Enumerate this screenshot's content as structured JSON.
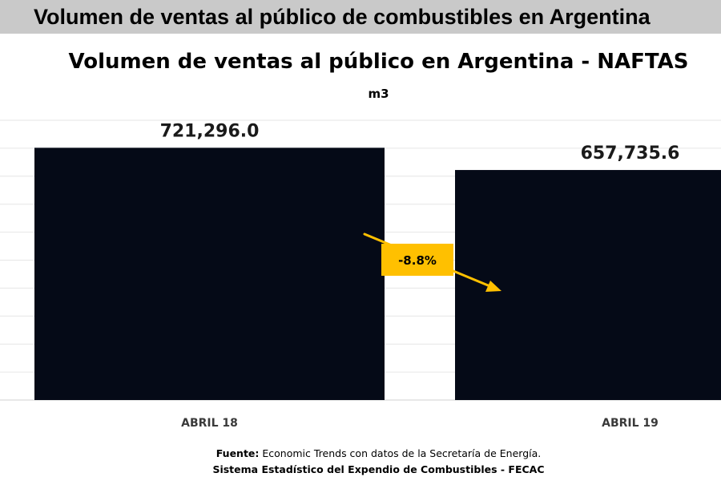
{
  "banner": {
    "title": "Volumen de ventas al público de combustibles en Argentina"
  },
  "chart_data": {
    "type": "bar",
    "title": "Volumen de ventas al público en Argentina - NAFTAS",
    "subtitle": "m3",
    "categories": [
      "ABRIL 18",
      "ABRIL 19"
    ],
    "values": [
      721296.0,
      657735.6
    ],
    "value_labels": [
      "721,296.0",
      "657,735.6"
    ],
    "ylim": [
      0,
      800000
    ],
    "grid": true,
    "bar_color": "#050a17",
    "annotation": {
      "text": "-8.8%",
      "color": "#ffc000",
      "type": "down-arrow"
    }
  },
  "source": {
    "label": "Fuente:",
    "text": " Economic Trends con datos de la Secretaría de Energía.",
    "line2": "Sistema Estadístico del Expendio de Combustibles - FECAC"
  }
}
